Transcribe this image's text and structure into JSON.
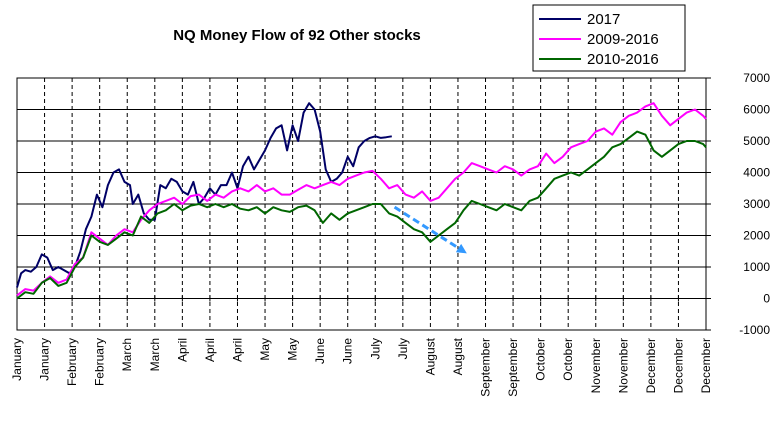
{
  "chart_data": {
    "type": "line",
    "title": "NQ Money Flow of 92 Other stocks",
    "xlabel": "",
    "ylabel": "",
    "ylim": [
      -1000,
      7000
    ],
    "y_ticks": [
      -1000,
      0,
      1000,
      2000,
      3000,
      4000,
      5000,
      6000,
      7000
    ],
    "x_tick_labels": [
      "January",
      "January",
      "February",
      "February",
      "March",
      "March",
      "April",
      "April",
      "April",
      "May",
      "May",
      "June",
      "June",
      "July",
      "July",
      "August",
      "August",
      "September",
      "September",
      "October",
      "October",
      "November",
      "November",
      "December",
      "December",
      "December"
    ],
    "grid": "both",
    "legend_position": "top-right",
    "x_domain": [
      0,
      25
    ],
    "series": [
      {
        "name": "2017",
        "color": "#000066",
        "x": [
          0,
          0.15,
          0.3,
          0.5,
          0.7,
          0.9,
          1.1,
          1.3,
          1.5,
          1.7,
          1.9,
          2.1,
          2.3,
          2.5,
          2.7,
          2.9,
          3.1,
          3.3,
          3.5,
          3.7,
          3.9,
          4.1,
          4.2,
          4.4,
          4.6,
          4.8,
          5.0,
          5.2,
          5.4,
          5.6,
          5.8,
          6.0,
          6.2,
          6.4,
          6.6,
          6.8,
          7.0,
          7.2,
          7.4,
          7.6,
          7.8,
          8.0,
          8.2,
          8.4,
          8.6,
          8.8,
          9.0,
          9.2,
          9.4,
          9.6,
          9.8,
          10.0,
          10.2,
          10.4,
          10.6,
          10.8,
          11.0,
          11.2,
          11.4,
          11.6,
          11.8,
          12.0,
          12.2,
          12.4,
          12.6,
          12.8,
          13.0,
          13.2,
          13.4,
          13.6
        ],
        "values": [
          350,
          800,
          900,
          850,
          1000,
          1400,
          1300,
          900,
          1000,
          900,
          800,
          1000,
          1500,
          2200,
          2600,
          3300,
          2900,
          3600,
          4000,
          4100,
          3700,
          3600,
          3000,
          3300,
          2700,
          2500,
          2500,
          3600,
          3500,
          3800,
          3700,
          3400,
          3300,
          3700,
          3000,
          3200,
          3500,
          3300,
          3600,
          3600,
          4000,
          3500,
          4200,
          4500,
          4100,
          4400,
          4700,
          5100,
          5400,
          5500,
          4700,
          5500,
          5000,
          5900,
          6200,
          6000,
          5300,
          4100,
          3700,
          3800,
          4000,
          4500,
          4200,
          4800,
          5000,
          5100,
          5150,
          5100,
          5120,
          5150
        ]
      },
      {
        "name": "2009-2016",
        "color": "#ff00ff",
        "x": [
          0,
          0.3,
          0.6,
          0.9,
          1.2,
          1.5,
          1.8,
          2.1,
          2.4,
          2.7,
          3.0,
          3.3,
          3.6,
          3.9,
          4.2,
          4.5,
          4.8,
          5.1,
          5.4,
          5.7,
          6.0,
          6.3,
          6.6,
          6.9,
          7.2,
          7.5,
          7.8,
          8.1,
          8.4,
          8.7,
          9.0,
          9.3,
          9.6,
          9.9,
          10.2,
          10.5,
          10.8,
          11.1,
          11.4,
          11.7,
          12.0,
          12.3,
          12.6,
          12.9,
          13.2,
          13.5,
          13.8,
          14.1,
          14.4,
          14.7,
          15.0,
          15.3,
          15.6,
          15.9,
          16.2,
          16.5,
          16.8,
          17.1,
          17.4,
          17.7,
          18.0,
          18.3,
          18.6,
          18.9,
          19.2,
          19.5,
          19.8,
          20.1,
          20.4,
          20.7,
          21.0,
          21.3,
          21.6,
          21.9,
          22.2,
          22.5,
          22.8,
          23.1,
          23.4,
          23.7,
          24.0,
          24.3,
          24.6,
          24.9,
          25.0
        ],
        "values": [
          100,
          300,
          250,
          500,
          700,
          500,
          600,
          1100,
          1300,
          2100,
          1900,
          1700,
          2000,
          2200,
          2100,
          2500,
          2800,
          3000,
          3100,
          3200,
          3000,
          3250,
          3300,
          3100,
          3300,
          3200,
          3400,
          3500,
          3400,
          3600,
          3400,
          3500,
          3300,
          3300,
          3450,
          3600,
          3500,
          3600,
          3700,
          3600,
          3800,
          3900,
          4000,
          4050,
          3800,
          3500,
          3600,
          3300,
          3200,
          3400,
          3100,
          3200,
          3500,
          3800,
          4000,
          4300,
          4200,
          4100,
          4000,
          4200,
          4100,
          3900,
          4100,
          4200,
          4600,
          4300,
          4500,
          4800,
          4900,
          5000,
          5300,
          5400,
          5200,
          5600,
          5800,
          5900,
          6100,
          6200,
          5800,
          5500,
          5700,
          5900,
          6000,
          5800,
          5700
        ]
      },
      {
        "name": "2010-2016",
        "color": "#006600",
        "x": [
          0,
          0.3,
          0.6,
          0.9,
          1.2,
          1.5,
          1.8,
          2.1,
          2.4,
          2.7,
          3.0,
          3.3,
          3.6,
          3.9,
          4.2,
          4.5,
          4.8,
          5.1,
          5.4,
          5.7,
          6.0,
          6.3,
          6.6,
          6.9,
          7.2,
          7.5,
          7.8,
          8.1,
          8.4,
          8.7,
          9.0,
          9.3,
          9.6,
          9.9,
          10.2,
          10.5,
          10.8,
          11.1,
          11.4,
          11.7,
          12.0,
          12.3,
          12.6,
          12.9,
          13.2,
          13.5,
          13.8,
          14.1,
          14.4,
          14.7,
          15.0,
          15.3,
          15.6,
          15.9,
          16.2,
          16.5,
          16.8,
          17.1,
          17.4,
          17.7,
          18.0,
          18.3,
          18.6,
          18.9,
          19.2,
          19.5,
          19.8,
          20.1,
          20.4,
          20.7,
          21.0,
          21.3,
          21.6,
          21.9,
          22.2,
          22.5,
          22.8,
          23.1,
          23.4,
          23.7,
          24.0,
          24.3,
          24.6,
          24.9,
          25.0
        ],
        "values": [
          0,
          200,
          150,
          500,
          650,
          400,
          500,
          1000,
          1300,
          2000,
          1800,
          1700,
          1900,
          2100,
          2000,
          2600,
          2400,
          2700,
          2800,
          3000,
          2800,
          2950,
          3000,
          2900,
          3000,
          2900,
          3000,
          2850,
          2800,
          2900,
          2700,
          2900,
          2800,
          2750,
          2900,
          2950,
          2800,
          2400,
          2700,
          2500,
          2700,
          2800,
          2900,
          3000,
          3000,
          2700,
          2600,
          2400,
          2200,
          2100,
          1800,
          2000,
          2200,
          2400,
          2800,
          3100,
          3000,
          2900,
          2800,
          3000,
          2900,
          2800,
          3100,
          3200,
          3500,
          3800,
          3900,
          4000,
          3900,
          4100,
          4300,
          4500,
          4800,
          4900,
          5100,
          5300,
          5200,
          4700,
          4500,
          4700,
          4900,
          5000,
          5000,
          4900,
          4800
        ]
      }
    ],
    "annotations": [
      {
        "type": "arrow",
        "style": "dashed",
        "color": "#3399ff",
        "from": [
          13.7,
          2900
        ],
        "to": [
          16.2,
          1500
        ]
      }
    ]
  }
}
